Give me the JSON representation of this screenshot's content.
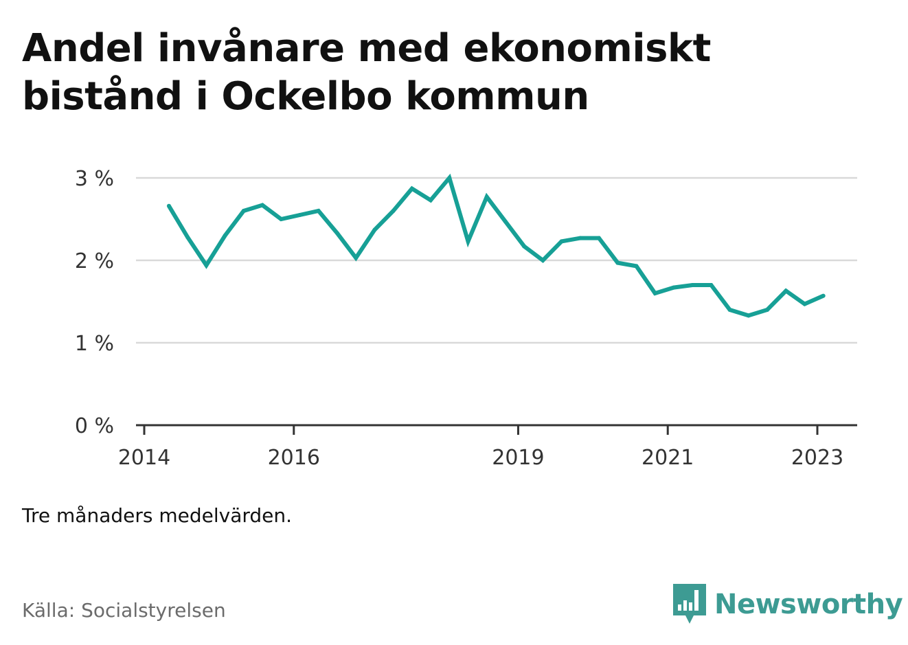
{
  "title": "Andel invånare med ekonomiskt bistånd i Ockelbo kommun",
  "note": "Tre månaders medelvärden.",
  "source": "Källa: Socialstyrelsen",
  "brand": {
    "name": "Newsworthy",
    "icon": "newsworthy-logo-icon",
    "color": "#3d9b93"
  },
  "colors": {
    "line": "#17a096",
    "grid": "#d9d9d9",
    "axis": "#333333"
  },
  "chart_data": {
    "type": "line",
    "title": "Andel invånare med ekonomiskt bistånd i Ockelbo kommun",
    "xlabel": "",
    "ylabel": "",
    "ylim": [
      0,
      3
    ],
    "xlim": [
      2014.0,
      2023.25
    ],
    "yticks": [
      0,
      1,
      2,
      3
    ],
    "ytick_labels": [
      "0 %",
      "1 %",
      "2 %",
      "3 %"
    ],
    "xticks": [
      2014,
      2016,
      2019,
      2021,
      2023
    ],
    "xtick_labels": [
      "2014",
      "2016",
      "2019",
      "2021",
      "2023"
    ],
    "grid": true,
    "legend": "none",
    "series": [
      {
        "x": [
          2014.33,
          2014.58,
          2014.83,
          2015.08,
          2015.33,
          2015.58,
          2015.83,
          2016.08,
          2016.33,
          2016.58,
          2016.83,
          2017.08,
          2017.33,
          2017.58,
          2017.83,
          2018.08,
          2018.33,
          2018.58,
          2018.83,
          2019.08,
          2019.33,
          2019.58,
          2019.83,
          2020.08,
          2020.33,
          2020.58,
          2020.83,
          2021.08,
          2021.33,
          2021.58,
          2021.83,
          2022.08,
          2022.33,
          2022.58,
          2022.83,
          2023.08
        ],
        "values": [
          2.66,
          2.28,
          1.94,
          2.3,
          2.6,
          2.67,
          2.5,
          2.55,
          2.6,
          2.33,
          2.03,
          2.37,
          2.6,
          2.87,
          2.73,
          3.0,
          2.23,
          2.77,
          2.47,
          2.17,
          2.0,
          2.23,
          2.27,
          2.27,
          1.97,
          1.93,
          1.6,
          1.67,
          1.7,
          1.7,
          1.4,
          1.33,
          1.4,
          1.63,
          1.47,
          1.57
        ]
      }
    ]
  }
}
